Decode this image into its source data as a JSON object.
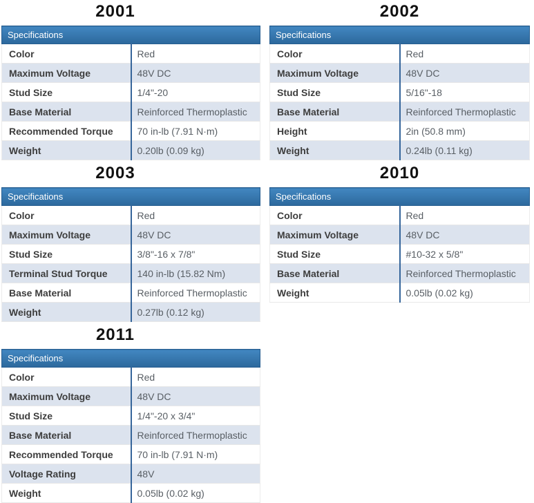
{
  "theme": {
    "colors": {
      "header-top": "#4287c1",
      "header-bottom": "#2c689c",
      "header-border": "#265d90",
      "row-alt": "#dce3ee",
      "divider": "#35659a",
      "label-text": "#3d3d3d",
      "value-text": "#585e64",
      "title-text": "#111111",
      "header-text": "#ffffff"
    }
  },
  "tables": [
    {
      "id": "2001",
      "title": "2001",
      "header": "Specifications",
      "rows": [
        {
          "label": "Color",
          "value": "Red"
        },
        {
          "label": "Maximum Voltage",
          "value": "48V DC"
        },
        {
          "label": "Stud Size",
          "value": "1/4\"-20"
        },
        {
          "label": "Base Material",
          "value": "Reinforced Thermoplastic"
        },
        {
          "label": "Recommended Torque",
          "value": "70 in-lb (7.91 N·m)"
        },
        {
          "label": "Weight",
          "value": "0.20lb (0.09 kg)"
        }
      ]
    },
    {
      "id": "2002",
      "title": "2002",
      "header": "Specifications",
      "rows": [
        {
          "label": "Color",
          "value": "Red"
        },
        {
          "label": "Maximum Voltage",
          "value": "48V DC"
        },
        {
          "label": "Stud Size",
          "value": "5/16\"-18"
        },
        {
          "label": "Base Material",
          "value": "Reinforced Thermoplastic"
        },
        {
          "label": "Height",
          "value": "2in (50.8 mm)"
        },
        {
          "label": "Weight",
          "value": "0.24lb (0.11 kg)"
        }
      ]
    },
    {
      "id": "2003",
      "title": "2003",
      "header": "Specifications",
      "rows": [
        {
          "label": "Color",
          "value": "Red"
        },
        {
          "label": "Maximum Voltage",
          "value": "48V DC"
        },
        {
          "label": "Stud Size",
          "value": "3/8\"-16 x 7/8\""
        },
        {
          "label": "Terminal Stud Torque",
          "value": "140 in-lb (15.82 Nm)"
        },
        {
          "label": "Base Material",
          "value": "Reinforced Thermoplastic"
        },
        {
          "label": "Weight",
          "value": "0.27lb (0.12 kg)"
        }
      ]
    },
    {
      "id": "2010",
      "title": "2010",
      "header": "Specifications",
      "rows": [
        {
          "label": "Color",
          "value": "Red"
        },
        {
          "label": "Maximum Voltage",
          "value": "48V DC"
        },
        {
          "label": "Stud Size",
          "value": "#10-32 x 5/8\""
        },
        {
          "label": "Base Material",
          "value": "Reinforced Thermoplastic"
        },
        {
          "label": "Weight",
          "value": "0.05lb (0.02 kg)"
        }
      ]
    },
    {
      "id": "2011",
      "title": "2011",
      "header": "Specifications",
      "rows": [
        {
          "label": "Color",
          "value": "Red"
        },
        {
          "label": "Maximum Voltage",
          "value": "48V DC"
        },
        {
          "label": "Stud Size",
          "value": "1/4\"-20 x 3/4\""
        },
        {
          "label": "Base Material",
          "value": "Reinforced Thermoplastic"
        },
        {
          "label": "Recommended Torque",
          "value": "70 in-lb (7.91 N·m)"
        },
        {
          "label": "Voltage Rating",
          "value": "48V"
        },
        {
          "label": "Weight",
          "value": "0.05lb (0.02 kg)"
        }
      ]
    }
  ]
}
